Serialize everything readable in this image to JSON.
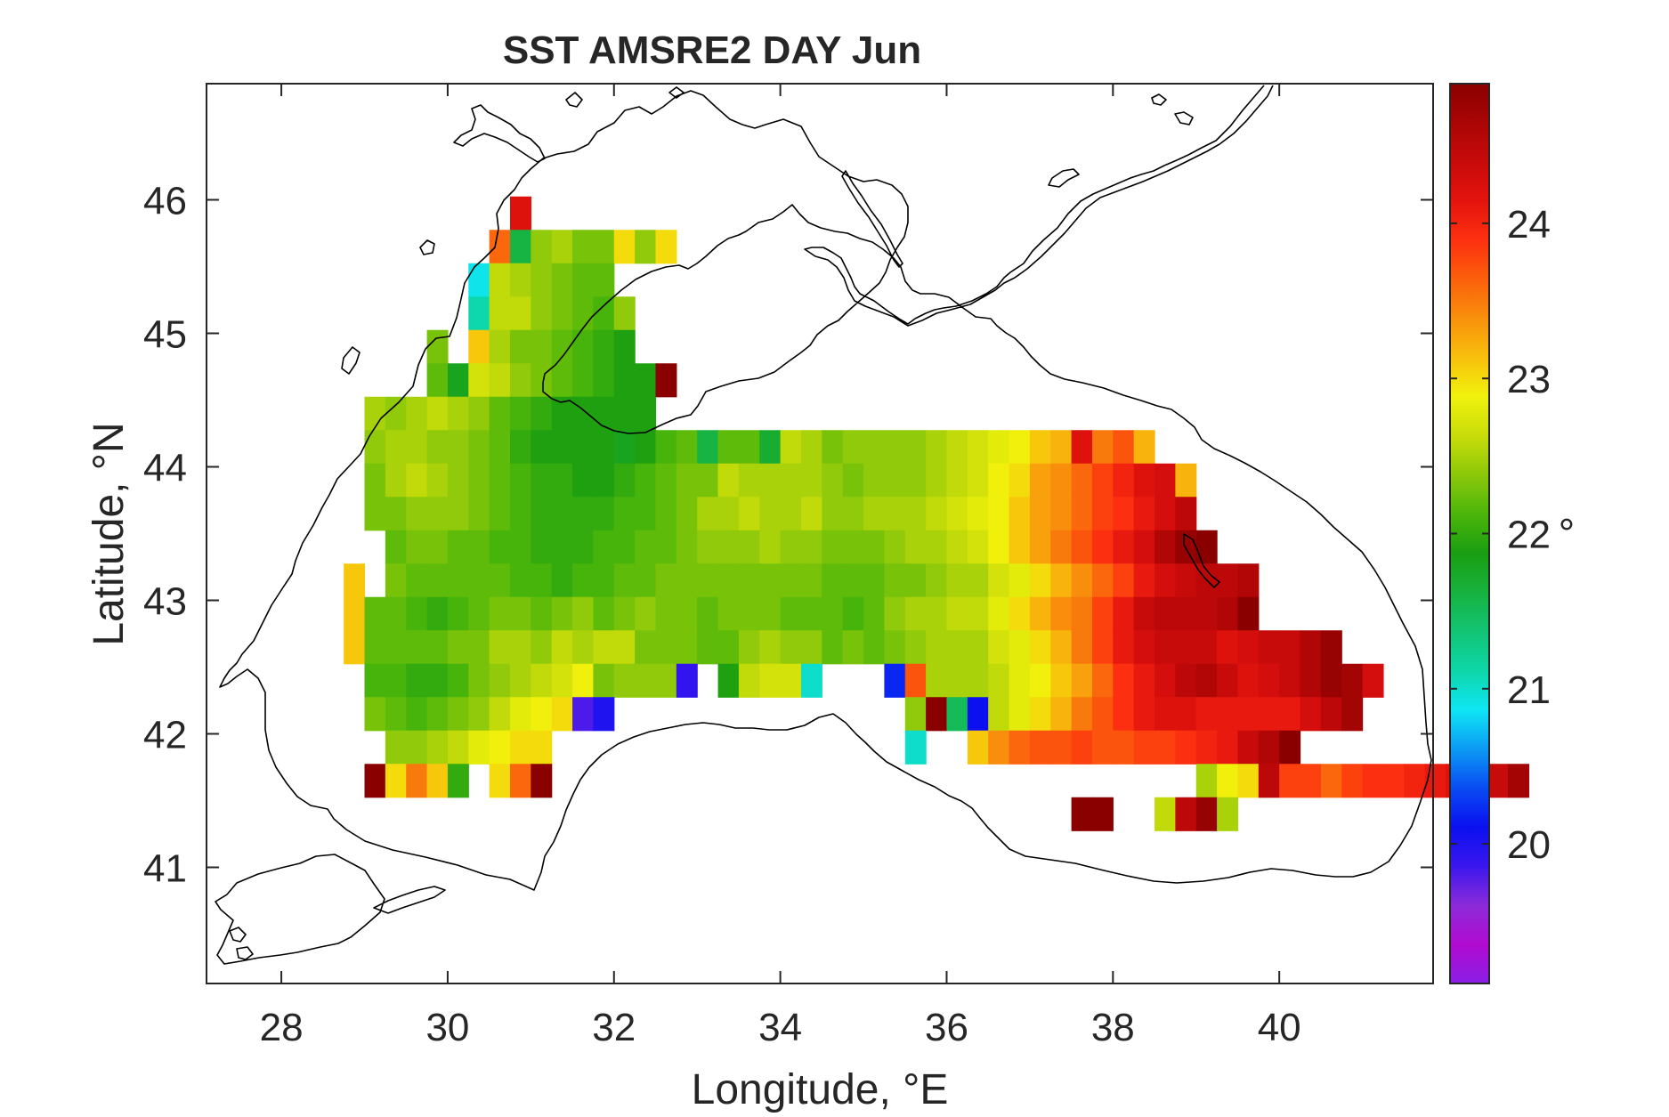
{
  "chart_data": {
    "type": "heatmap",
    "title": "SST AMSRE2 DAY Jun",
    "xlabel": "Longitude, °E",
    "ylabel": "Latitude, °N",
    "xlim": [
      27.1,
      41.85
    ],
    "ylim": [
      40.13,
      46.87
    ],
    "xticks": [
      28,
      30,
      32,
      34,
      36,
      38,
      40
    ],
    "yticks": [
      41,
      42,
      43,
      44,
      45,
      46
    ],
    "colorbar": {
      "range": [
        19.1,
        24.9
      ],
      "ticks": [
        20,
        21,
        22,
        23,
        24
      ],
      "unit": "°",
      "colormap": [
        "#8a1fe6",
        "#b10bd0",
        "#8c2bd8",
        "#3a16ee",
        "#0a10f0",
        "#0a4cf2",
        "#0c9bf4",
        "#0ee6f4",
        "#0ed6a8",
        "#12c474",
        "#17b23e",
        "#1a9e12",
        "#4cb60a",
        "#8cc80a",
        "#c8dc0a",
        "#f0f20c",
        "#f8c00c",
        "#f8900c",
        "#fb600c",
        "#fd3010",
        "#e4140e",
        "#c80a0a",
        "#aa0505",
        "#8a0000"
      ]
    },
    "cell_size_deg": [
      0.25,
      0.25
    ],
    "cell_origin": [
      29.0,
      41.4
    ],
    "rows_lat_desc": [
      {
        "lat": 45.9,
        "start": 30.75,
        "values": [
          24.2
        ]
      },
      {
        "lat": 45.65,
        "start": 30.5,
        "values": [
          23.6,
          21.6,
          22.4,
          22.5,
          22.3,
          22.3,
          23.0,
          22.4,
          23.0
        ]
      },
      {
        "lat": 45.4,
        "start": 30.25,
        "values": [
          20.9,
          22.6,
          22.5,
          22.4,
          22.3,
          22.2,
          22.2
        ]
      },
      {
        "lat": 45.15,
        "start": 30.25,
        "values": [
          21.1,
          22.6,
          22.6,
          22.4,
          22.3,
          22.2,
          22.1,
          22.4
        ]
      },
      {
        "lat": 44.9,
        "start": 29.75,
        "values": [
          22.3,
          null,
          23.1,
          22.5,
          22.3,
          22.3,
          22.2,
          22.1,
          22.0,
          21.9
        ]
      },
      {
        "lat": 44.65,
        "start": 29.75,
        "values": [
          22.2,
          21.8,
          22.7,
          22.6,
          22.4,
          22.3,
          22.2,
          22.1,
          22.0,
          21.9,
          21.9,
          24.9
        ]
      },
      {
        "lat": 44.4,
        "start": 29.0,
        "values": [
          22.5,
          22.4,
          22.5,
          22.6,
          22.5,
          22.4,
          22.2,
          22.1,
          22.0,
          21.9,
          21.9,
          21.9,
          21.9,
          21.9
        ]
      },
      {
        "lat": 44.15,
        "start": 29.0,
        "values": [
          22.4,
          22.5,
          22.5,
          22.4,
          22.4,
          22.3,
          22.2,
          22.0,
          21.9,
          21.9,
          21.9,
          21.9,
          21.8,
          21.9,
          22.1,
          22.2,
          21.6,
          22.2,
          22.2,
          21.7,
          22.6,
          22.5,
          22.3,
          22.4,
          22.4,
          22.4,
          22.4,
          22.5,
          22.6,
          22.7,
          22.8,
          22.9,
          23.1,
          23.2,
          24.2,
          23.5,
          23.7,
          23.2
        ]
      },
      {
        "lat": 43.9,
        "start": 29.0,
        "values": [
          22.3,
          22.5,
          22.6,
          22.5,
          22.4,
          22.3,
          22.2,
          22.1,
          22.0,
          22.0,
          21.9,
          21.9,
          22.0,
          22.1,
          22.2,
          22.3,
          22.3,
          22.6,
          22.5,
          22.5,
          22.5,
          22.5,
          22.4,
          22.3,
          22.4,
          22.4,
          22.4,
          22.5,
          22.6,
          22.7,
          22.9,
          23.0,
          23.3,
          23.4,
          23.6,
          23.8,
          24.0,
          24.2,
          24.3,
          23.2
        ]
      },
      {
        "lat": 43.65,
        "start": 29.0,
        "values": [
          22.3,
          22.3,
          22.4,
          22.4,
          22.4,
          22.3,
          22.2,
          22.1,
          22.0,
          22.0,
          22.0,
          22.0,
          22.1,
          22.1,
          22.2,
          22.3,
          22.5,
          22.5,
          22.6,
          22.5,
          22.5,
          22.6,
          22.4,
          22.4,
          22.5,
          22.5,
          22.5,
          22.6,
          22.7,
          22.8,
          22.9,
          23.1,
          23.3,
          23.4,
          23.6,
          23.8,
          23.9,
          24.1,
          24.3,
          24.5
        ]
      },
      {
        "lat": 43.4,
        "start": 28.75,
        "values": [
          null,
          null,
          22.2,
          22.3,
          22.3,
          22.2,
          22.2,
          22.1,
          22.1,
          22.0,
          22.0,
          22.0,
          22.1,
          22.1,
          22.2,
          22.2,
          22.3,
          22.4,
          22.4,
          22.4,
          22.5,
          22.4,
          22.4,
          22.3,
          22.3,
          22.3,
          22.4,
          22.5,
          22.5,
          22.6,
          22.7,
          22.9,
          23.1,
          23.3,
          23.5,
          23.7,
          23.9,
          24.1,
          24.3,
          24.6,
          24.8,
          24.9
        ]
      },
      {
        "lat": 43.15,
        "start": 28.75,
        "values": [
          23.1,
          null,
          22.3,
          22.2,
          22.2,
          22.2,
          22.2,
          22.2,
          22.1,
          22.1,
          22.0,
          22.1,
          22.1,
          22.2,
          22.2,
          22.3,
          22.3,
          22.3,
          22.3,
          22.3,
          22.3,
          22.3,
          22.3,
          22.2,
          22.2,
          22.2,
          22.3,
          22.3,
          22.4,
          22.5,
          22.5,
          22.7,
          22.8,
          23.0,
          23.2,
          23.4,
          23.6,
          23.8,
          24.1,
          24.3,
          24.4,
          24.5,
          24.5,
          24.6
        ]
      },
      {
        "lat": 42.9,
        "start": 28.75,
        "values": [
          23.1,
          22.2,
          22.2,
          22.1,
          22.0,
          22.1,
          22.2,
          22.3,
          22.3,
          22.2,
          22.3,
          22.4,
          22.2,
          22.3,
          22.4,
          22.3,
          22.3,
          22.2,
          22.3,
          22.3,
          22.3,
          22.2,
          22.2,
          22.2,
          22.1,
          22.2,
          22.4,
          22.5,
          22.5,
          22.6,
          22.6,
          22.8,
          23.0,
          23.2,
          23.4,
          23.5,
          23.8,
          24.1,
          24.4,
          24.5,
          24.5,
          24.5,
          24.6,
          24.9
        ]
      },
      {
        "lat": 42.65,
        "start": 28.75,
        "values": [
          23.1,
          22.2,
          22.2,
          22.2,
          22.2,
          22.3,
          22.3,
          22.5,
          22.5,
          22.4,
          22.6,
          22.5,
          22.6,
          22.6,
          22.3,
          22.3,
          22.3,
          22.2,
          22.2,
          22.4,
          22.5,
          22.4,
          22.4,
          22.2,
          22.3,
          22.2,
          22.3,
          22.4,
          22.5,
          22.5,
          22.5,
          22.7,
          22.8,
          23.0,
          23.2,
          23.5,
          23.8,
          24.1,
          24.3,
          24.4,
          24.4,
          24.4,
          24.2,
          24.3,
          24.4,
          24.4,
          24.6,
          24.8
        ]
      },
      {
        "lat": 42.4,
        "start": 29.0,
        "values": [
          22.1,
          22.1,
          22.0,
          22.0,
          22.1,
          22.3,
          22.4,
          22.5,
          22.6,
          22.7,
          22.9,
          22.3,
          22.4,
          22.4,
          22.4,
          19.9,
          null,
          21.9,
          22.6,
          22.7,
          22.7,
          21.0,
          null,
          null,
          null,
          20.2,
          23.7,
          22.5,
          22.5,
          22.5,
          22.6,
          22.8,
          22.9,
          23.1,
          23.3,
          23.6,
          23.9,
          24.1,
          24.3,
          24.5,
          24.6,
          24.4,
          24.2,
          24.3,
          24.4,
          24.6,
          24.8,
          24.7,
          24.3
        ]
      },
      {
        "lat": 42.15,
        "start": 29.0,
        "values": [
          22.3,
          22.2,
          22.1,
          22.2,
          22.3,
          22.4,
          22.6,
          22.8,
          22.9,
          23.0,
          19.8,
          20.0,
          null,
          null,
          null,
          null,
          null,
          null,
          null,
          null,
          null,
          null,
          null,
          null,
          null,
          null,
          22.4,
          24.9,
          21.5,
          20.1,
          22.6,
          22.8,
          23.0,
          23.2,
          23.5,
          23.7,
          23.9,
          24.1,
          24.2,
          24.2,
          24.1,
          24.1,
          24.1,
          24.1,
          24.1,
          24.3,
          24.5,
          24.7
        ]
      },
      {
        "lat": 41.9,
        "start": 29.25,
        "values": [
          22.4,
          22.4,
          22.5,
          22.6,
          22.8,
          22.9,
          23.0,
          23.0,
          null,
          null,
          null,
          null,
          null,
          null,
          null,
          null,
          null,
          null,
          null,
          null,
          null,
          null,
          null,
          null,
          null,
          21.0,
          null,
          null,
          23.1,
          23.4,
          23.6,
          23.7,
          23.7,
          23.8,
          23.7,
          23.7,
          23.8,
          23.8,
          23.9,
          24.0,
          24.1,
          24.4,
          24.6,
          24.9
        ]
      },
      {
        "lat": 41.65,
        "start": 29.0,
        "values": [
          24.9,
          23.0,
          23.5,
          23.1,
          22.0,
          null,
          23.0,
          23.6,
          24.9,
          null,
          null,
          null,
          null,
          null,
          null,
          null,
          null,
          null,
          null,
          null,
          null,
          null,
          null,
          null,
          null,
          null,
          null,
          null,
          null,
          null,
          null,
          null,
          null,
          null,
          null,
          null,
          null,
          null,
          null,
          null,
          22.5,
          22.9,
          23.0,
          24.5,
          23.8,
          23.8,
          23.6,
          23.8,
          23.9,
          23.9,
          24.0,
          24.1,
          24.2,
          24.3,
          24.4,
          24.7
        ]
      },
      {
        "lat": 41.4,
        "start": 37.5,
        "values": [
          24.9,
          24.9,
          null,
          null,
          22.6,
          24.5,
          24.8,
          22.5
        ]
      }
    ]
  }
}
